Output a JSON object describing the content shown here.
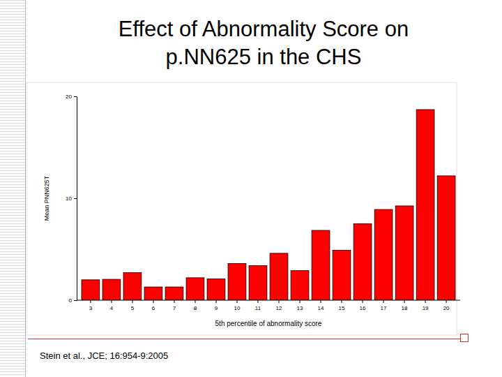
{
  "chart_data": {
    "type": "bar",
    "title": "Effect of Abnormality Score on\np.NN625 in the CHS",
    "x_label": "5th percentile of abnormality score",
    "y_label": "Mean PNN625T",
    "annotations": [
      "Stein et al., JCE; 16:954-9:2005"
    ],
    "categories": [
      "3",
      "4",
      "5",
      "6",
      "7",
      "8",
      "9",
      "10",
      "11",
      "12",
      "13",
      "14",
      "15",
      "16",
      "17",
      "18",
      "19",
      "20"
    ],
    "values": [
      2.0,
      2.05,
      2.7,
      1.3,
      1.3,
      2.2,
      2.1,
      3.6,
      3.4,
      4.6,
      2.9,
      6.85,
      4.9,
      7.5,
      8.9,
      9.25,
      18.7,
      12.2
    ],
    "color": "#ff0000",
    "ylim": [
      0,
      20
    ],
    "yticks": [
      0,
      10,
      20
    ],
    "grid": false
  }
}
